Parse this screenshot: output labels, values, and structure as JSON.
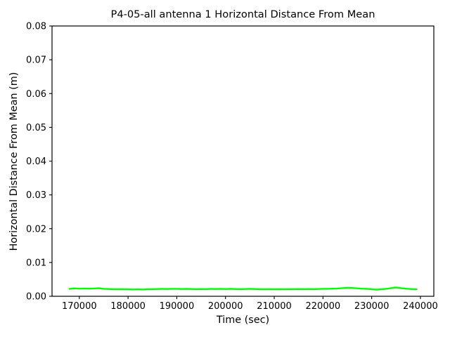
{
  "chart_data": {
    "type": "line",
    "title": "P4-05-all antenna 1 Horizontal Distance From Mean",
    "xlabel": "Time (sec)",
    "ylabel": "Horizontal Distance From Mean (m)",
    "xlim": [
      164400,
      242750
    ],
    "ylim": [
      0,
      0.08
    ],
    "xticks": [
      170000,
      180000,
      190000,
      200000,
      210000,
      220000,
      230000,
      240000
    ],
    "yticks": [
      0.0,
      0.01,
      0.02,
      0.03,
      0.04,
      0.05,
      0.06,
      0.07,
      0.08
    ],
    "grid": false,
    "legend": "none",
    "background_color": "#ffffff",
    "axis_color": "#000000",
    "series": [
      {
        "color": "#00ff00",
        "x": [
          168000,
          169000,
          170000,
          171000,
          172000,
          173000,
          174000,
          175000,
          176000,
          177000,
          178000,
          179000,
          180000,
          181000,
          182000,
          183000,
          184000,
          185000,
          186000,
          187000,
          188000,
          189000,
          190000,
          191000,
          192000,
          193000,
          194000,
          195000,
          196000,
          197000,
          198000,
          199000,
          200000,
          201000,
          202000,
          203000,
          204000,
          205000,
          206000,
          207000,
          208000,
          209000,
          210000,
          211000,
          212000,
          213000,
          214000,
          215000,
          216000,
          217000,
          218000,
          219000,
          220000,
          221000,
          222000,
          223000,
          224000,
          225000,
          226000,
          227000,
          228000,
          229000,
          230000,
          231000,
          232000,
          233000,
          234000,
          235000,
          236000,
          237000,
          238000,
          239000,
          239200
        ],
        "y": [
          0.0022,
          0.00235,
          0.00225,
          0.0023,
          0.00225,
          0.0023,
          0.0024,
          0.0022,
          0.00215,
          0.0021,
          0.00205,
          0.0021,
          0.00205,
          0.002,
          0.00205,
          0.002,
          0.00205,
          0.0021,
          0.00215,
          0.0022,
          0.00215,
          0.0022,
          0.0022,
          0.00215,
          0.0022,
          0.00215,
          0.0021,
          0.00215,
          0.0021,
          0.0022,
          0.00215,
          0.0022,
          0.00215,
          0.0022,
          0.00215,
          0.0021,
          0.00215,
          0.0022,
          0.00215,
          0.0021,
          0.00205,
          0.0021,
          0.00205,
          0.0021,
          0.00205,
          0.0021,
          0.0021,
          0.00215,
          0.0021,
          0.00215,
          0.0021,
          0.00215,
          0.0022,
          0.0022,
          0.00225,
          0.0023,
          0.0024,
          0.0025,
          0.00245,
          0.00235,
          0.00225,
          0.0022,
          0.0021,
          0.00195,
          0.0021,
          0.0022,
          0.0024,
          0.0026,
          0.0024,
          0.00225,
          0.00215,
          0.00205,
          0.0021
        ]
      }
    ]
  }
}
